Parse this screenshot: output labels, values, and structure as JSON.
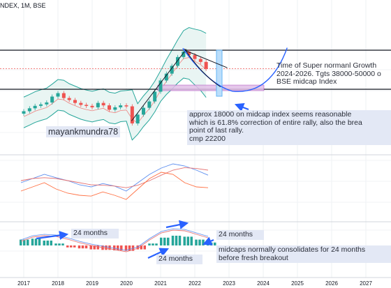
{
  "header": {
    "symbol_text": "NDEX, 1M, BSE"
  },
  "watermark": {
    "text": "mayankmundra78"
  },
  "annotations": {
    "growth": "Time of Super normanl Growth\n2024-2026. Tgts 38000-50000 o\nBSE midcap Index",
    "correction": "approx 18000 on midcap index seems reasonable\nwhich is 61.8% correction of entire rally, also the brea\npoint of last rally.\ncmp 22200",
    "months_1": "24 months",
    "months_2": "24 months",
    "months_3": "24 months",
    "consolidate": "midcaps normally consolidates for 24 months\nbefore fresh breakout"
  },
  "colors": {
    "up": "#26a69a",
    "down": "#ef5350",
    "band": "#26a69a",
    "band_fill": "#e9f5f3",
    "zone": "#e1bee7",
    "projection": "#2962ff",
    "line_blue": "#5b8def",
    "line_red": "#e57373",
    "line_orange": "#ff7043",
    "macd_up": "#26a69a",
    "macd_down": "#ef5350"
  },
  "chart_data": {
    "type": "candlestick",
    "x_axis": {
      "labels": [
        "2017",
        "2018",
        "2019",
        "2020",
        "2021",
        "2022",
        "2023",
        "2024",
        "2025",
        "2026",
        "2027"
      ]
    },
    "price_levels": {
      "resistance_top": 26000,
      "support_bottom": 18000,
      "cmp": 22200
    },
    "price_series": [
      {
        "year": 2017.0,
        "o": 13000,
        "c": 13500
      },
      {
        "year": 2017.17,
        "o": 13500,
        "c": 14100
      },
      {
        "year": 2017.33,
        "o": 14100,
        "c": 14600
      },
      {
        "year": 2017.5,
        "o": 14600,
        "c": 14900
      },
      {
        "year": 2017.67,
        "o": 14900,
        "c": 15300
      },
      {
        "year": 2017.83,
        "o": 15300,
        "c": 16500
      },
      {
        "year": 2018.0,
        "o": 16500,
        "c": 17200
      },
      {
        "year": 2018.17,
        "o": 17200,
        "c": 16200
      },
      {
        "year": 2018.33,
        "o": 16200,
        "c": 15800
      },
      {
        "year": 2018.5,
        "o": 15800,
        "c": 15200
      },
      {
        "year": 2018.67,
        "o": 15200,
        "c": 14800
      },
      {
        "year": 2018.83,
        "o": 14800,
        "c": 14600
      },
      {
        "year": 2019.0,
        "o": 14600,
        "c": 14300
      },
      {
        "year": 2019.17,
        "o": 14300,
        "c": 15200
      },
      {
        "year": 2019.33,
        "o": 15200,
        "c": 14700
      },
      {
        "year": 2019.5,
        "o": 14700,
        "c": 13800
      },
      {
        "year": 2019.67,
        "o": 13800,
        "c": 14300
      },
      {
        "year": 2019.83,
        "o": 14300,
        "c": 14700
      },
      {
        "year": 2020.0,
        "o": 14700,
        "c": 14500
      },
      {
        "year": 2020.17,
        "o": 14500,
        "c": 11000
      },
      {
        "year": 2020.33,
        "o": 11000,
        "c": 12800
      },
      {
        "year": 2020.5,
        "o": 12800,
        "c": 14200
      },
      {
        "year": 2020.67,
        "o": 14200,
        "c": 15500
      },
      {
        "year": 2020.83,
        "o": 15500,
        "c": 17500
      },
      {
        "year": 2021.0,
        "o": 17500,
        "c": 19800
      },
      {
        "year": 2021.17,
        "o": 19800,
        "c": 21200
      },
      {
        "year": 2021.33,
        "o": 21200,
        "c": 22800
      },
      {
        "year": 2021.5,
        "o": 22800,
        "c": 24600
      },
      {
        "year": 2021.67,
        "o": 24600,
        "c": 25700
      },
      {
        "year": 2021.83,
        "o": 25700,
        "c": 25000
      },
      {
        "year": 2022.0,
        "o": 25000,
        "c": 24200
      },
      {
        "year": 2022.17,
        "o": 24200,
        "c": 23600
      },
      {
        "year": 2022.33,
        "o": 23600,
        "c": 22200
      }
    ],
    "oscillator_1": {
      "blue": [
        0.5,
        0.6,
        0.7,
        0.62,
        0.55,
        0.45,
        0.4,
        0.48,
        0.42,
        0.3,
        0.5,
        0.7,
        0.85,
        0.95,
        0.9,
        0.8,
        0.68
      ],
      "red": [
        0.55,
        0.6,
        0.62,
        0.6,
        0.55,
        0.5,
        0.45,
        0.44,
        0.42,
        0.38,
        0.44,
        0.55,
        0.68,
        0.8,
        0.86,
        0.84,
        0.8
      ],
      "orange": [
        0.3,
        0.4,
        0.5,
        0.35,
        0.25,
        0.2,
        0.18,
        0.28,
        0.2,
        0.1,
        0.35,
        0.6,
        0.75,
        0.7,
        0.5,
        0.4,
        0.38
      ]
    },
    "macd": {
      "histogram": [
        0.6,
        0.7,
        0.5,
        0.2,
        -0.2,
        -0.3,
        -0.4,
        -0.45,
        -0.5,
        -0.55,
        -0.4,
        0.2,
        0.8,
        1.0,
        0.9,
        0.6,
        0.3
      ],
      "line": [
        0.3,
        0.6,
        0.7,
        0.65,
        0.45,
        0.2,
        0.0,
        -0.15,
        -0.3,
        -0.45,
        -0.2,
        0.4,
        0.9,
        1.1,
        1.05,
        0.8,
        0.55
      ]
    }
  }
}
